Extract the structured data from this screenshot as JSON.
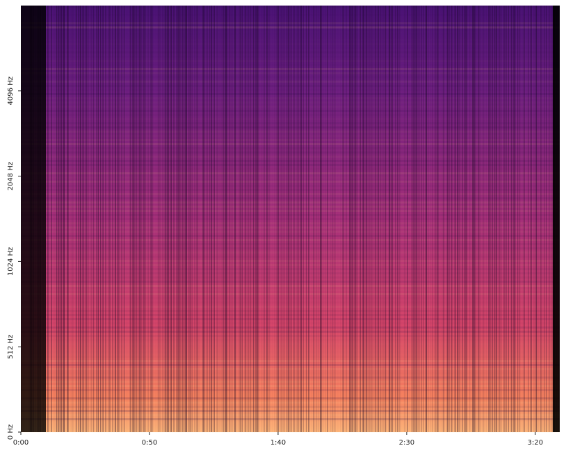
{
  "chart_data": {
    "type": "spectrogram",
    "xlim": [
      0,
      209.5
    ],
    "xticks": [
      {
        "value": 0,
        "label": "0:00"
      },
      {
        "value": 50,
        "label": "0:50"
      },
      {
        "value": 100,
        "label": "1:40"
      },
      {
        "value": 150,
        "label": "2:30"
      },
      {
        "value": 200,
        "label": "3:20"
      }
    ],
    "ylim": [
      0,
      8192
    ],
    "yscale": "symlog",
    "linthresh": 512,
    "logbase": 2,
    "yticks": [
      {
        "value": 0,
        "label": "0 Hz"
      },
      {
        "value": 512,
        "label": "512 Hz"
      },
      {
        "value": 1024,
        "label": "1024 Hz"
      },
      {
        "value": 2048,
        "label": "2048 Hz"
      },
      {
        "value": 4096,
        "label": "4096 Hz"
      }
    ],
    "colormap": "magma"
  }
}
